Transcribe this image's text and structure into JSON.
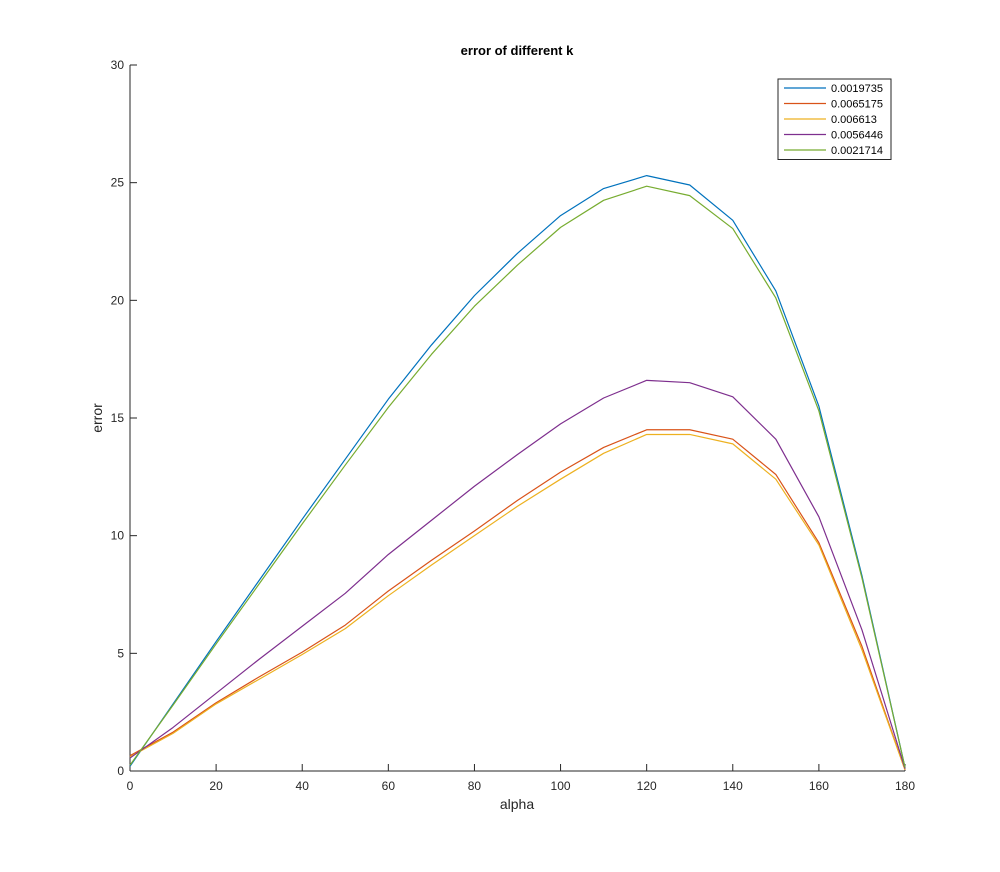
{
  "chart_data": {
    "type": "line",
    "title": "error of different k",
    "xlabel": "alpha",
    "ylabel": "error",
    "xlim": [
      0,
      180
    ],
    "ylim": [
      0,
      30
    ],
    "xticks": [
      0,
      20,
      40,
      60,
      80,
      100,
      120,
      140,
      160,
      180
    ],
    "yticks": [
      0,
      5,
      10,
      15,
      20,
      25,
      30
    ],
    "xtick_labels": [
      "0",
      "20",
      "40",
      "60",
      "80",
      "100",
      "120",
      "140",
      "160",
      "180"
    ],
    "ytick_labels": [
      "0",
      "5",
      "10",
      "15",
      "20",
      "25",
      "30"
    ],
    "grid": false,
    "legend_position": "top-right",
    "x": [
      0,
      10,
      20,
      30,
      40,
      50,
      60,
      70,
      80,
      90,
      100,
      110,
      120,
      130,
      140,
      150,
      160,
      170,
      180
    ],
    "series": [
      {
        "name": "0.0019735",
        "color": "#0072BD",
        "values": [
          0.2,
          2.85,
          5.5,
          8.1,
          10.7,
          13.25,
          15.8,
          18.1,
          20.2,
          22.0,
          23.6,
          24.75,
          25.3,
          24.9,
          23.4,
          20.4,
          15.5,
          8.3,
          0.15
        ]
      },
      {
        "name": "0.0065175",
        "color": "#D95319",
        "values": [
          0.65,
          1.65,
          2.9,
          4.0,
          5.05,
          6.2,
          7.65,
          8.95,
          10.2,
          11.5,
          12.7,
          13.75,
          14.5,
          14.5,
          14.1,
          12.6,
          9.7,
          5.3,
          0.05
        ]
      },
      {
        "name": "0.006613",
        "color": "#EDB120",
        "values": [
          0.6,
          1.6,
          2.85,
          3.9,
          4.95,
          6.05,
          7.45,
          8.75,
          10.0,
          11.25,
          12.4,
          13.5,
          14.3,
          14.3,
          13.9,
          12.4,
          9.6,
          5.15,
          0.05
        ]
      },
      {
        "name": "0.0056446",
        "color": "#7E2F8E",
        "values": [
          0.55,
          1.85,
          3.3,
          4.75,
          6.15,
          7.55,
          9.2,
          10.65,
          12.1,
          13.45,
          14.75,
          15.85,
          16.6,
          16.5,
          15.9,
          14.1,
          10.8,
          6.0,
          0.1
        ]
      },
      {
        "name": "0.0021714",
        "color": "#77AC30",
        "values": [
          0.25,
          2.8,
          5.4,
          7.95,
          10.5,
          13.0,
          15.45,
          17.7,
          19.75,
          21.5,
          23.1,
          24.25,
          24.85,
          24.45,
          23.05,
          20.1,
          15.3,
          8.2,
          0.15
        ]
      }
    ]
  }
}
